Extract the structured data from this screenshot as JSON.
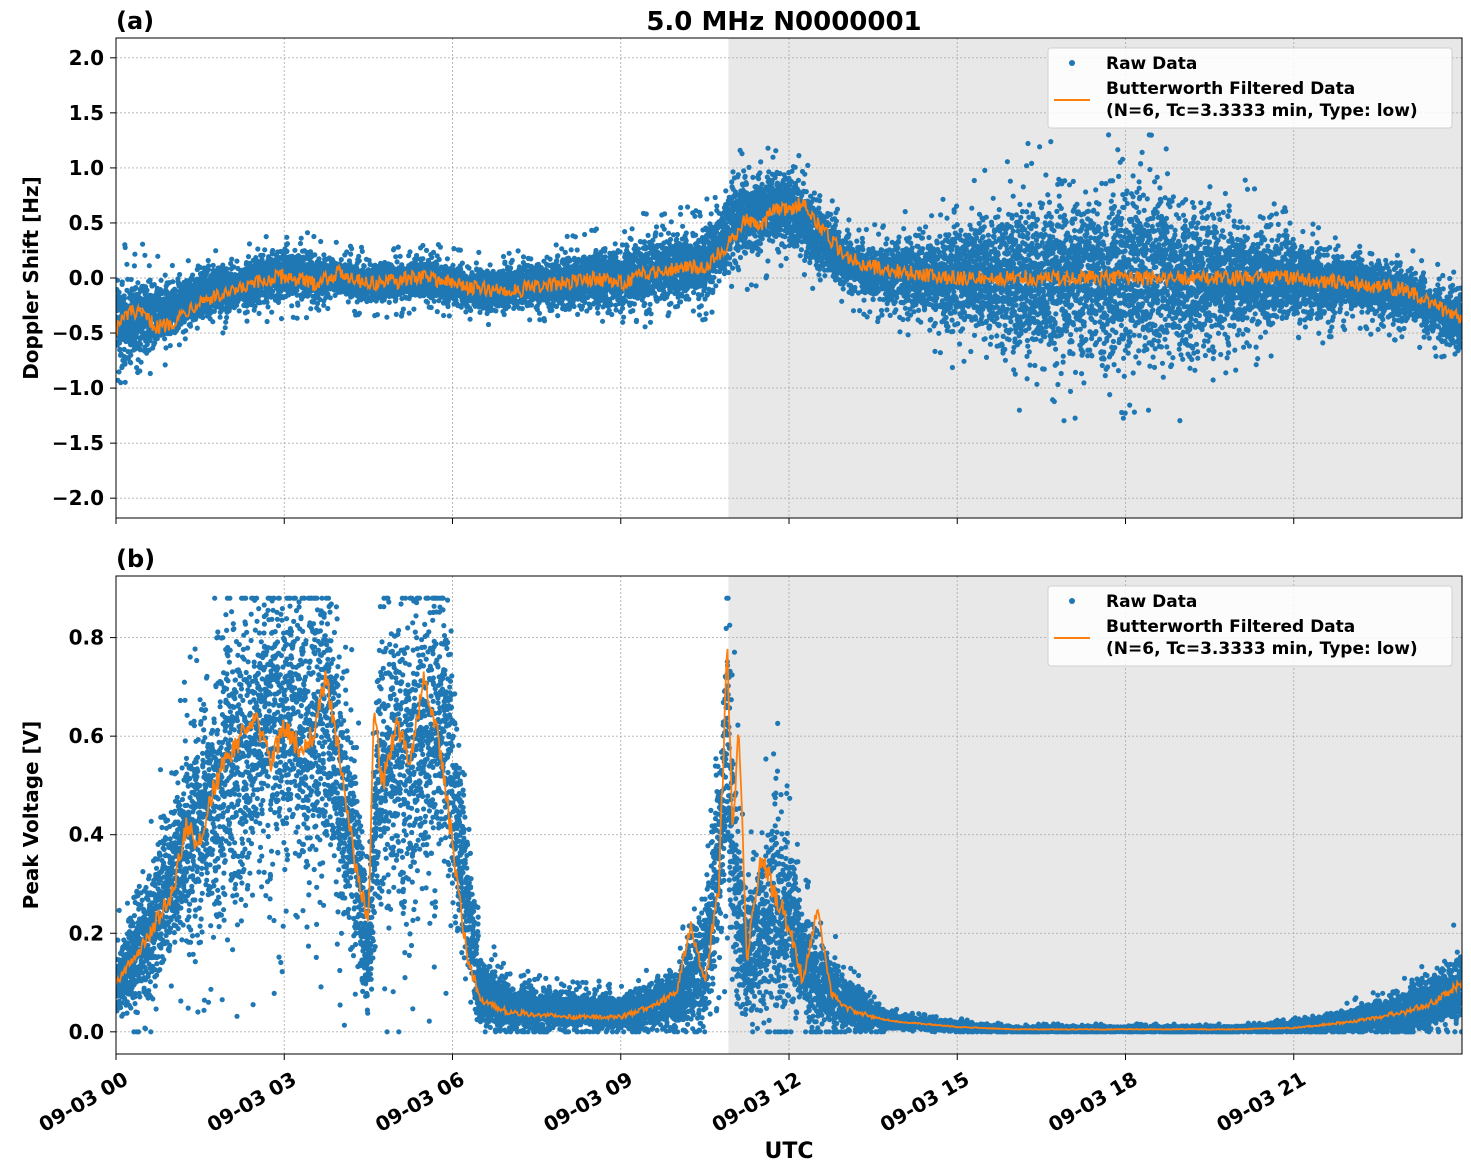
{
  "figure": {
    "title": "5.0 MHz N0000001",
    "xlabel": "UTC"
  },
  "colors": {
    "raw": "#1f77b4",
    "filtered": "#ff7f0e",
    "night_shade": "#e8e8e8",
    "grid": "#b0b0b0"
  },
  "legend": {
    "raw_label": "Raw Data",
    "filtered_label_line1": "Butterworth Filtered Data",
    "filtered_label_line2": "(N=6, Tc=3.3333 min, Type: low)"
  },
  "x_axis": {
    "range_hours": [
      0,
      24
    ],
    "ticks": [
      {
        "hour": 0,
        "label": "09-03 00"
      },
      {
        "hour": 3,
        "label": "09-03 03"
      },
      {
        "hour": 6,
        "label": "09-03 06"
      },
      {
        "hour": 9,
        "label": "09-03 09"
      },
      {
        "hour": 12,
        "label": "09-03 12"
      },
      {
        "hour": 15,
        "label": "09-03 15"
      },
      {
        "hour": 18,
        "label": "09-03 18"
      },
      {
        "hour": 21,
        "label": "09-03 21"
      }
    ]
  },
  "chart_data": [
    {
      "type": "scatter",
      "panel_label": "(a)",
      "ylabel": "Doppler Shift [Hz]",
      "ylim": [
        -2.18,
        2.18
      ],
      "yticks": [
        {
          "v": 2.0,
          "label": "2.0"
        },
        {
          "v": 1.5,
          "label": "1.5"
        },
        {
          "v": 1.0,
          "label": "1.0"
        },
        {
          "v": 0.5,
          "label": "0.5"
        },
        {
          "v": 0.0,
          "label": "0.0"
        },
        {
          "v": -0.5,
          "label": "−0.5"
        },
        {
          "v": -1.0,
          "label": "−1.0"
        },
        {
          "v": -1.5,
          "label": "−1.5"
        },
        {
          "v": -2.0,
          "label": "−2.0"
        }
      ],
      "night_shade_hours": [
        10.92,
        24
      ],
      "grid": true,
      "legend_position": "upper right",
      "series": [
        {
          "name": "Raw Data",
          "kind": "band-scatter",
          "x": [
            0,
            0.5,
            1,
            1.5,
            2,
            2.5,
            3,
            3.5,
            4,
            4.5,
            5,
            5.5,
            6,
            6.5,
            7,
            7.5,
            8,
            8.5,
            9,
            9.5,
            10,
            10.5,
            11,
            11.5,
            12,
            12.5,
            13,
            13.5,
            14,
            14.5,
            15,
            15.5,
            16,
            16.5,
            17,
            17.5,
            18,
            18.5,
            19,
            19.5,
            20,
            20.5,
            21,
            21.5,
            22,
            22.5,
            23,
            23.5,
            24
          ],
          "center": [
            -0.4,
            -0.35,
            -0.3,
            -0.15,
            -0.1,
            -0.05,
            0.05,
            0.0,
            0.0,
            -0.05,
            -0.02,
            0.0,
            -0.05,
            -0.1,
            -0.1,
            -0.05,
            -0.05,
            0.0,
            0.0,
            0.05,
            0.1,
            0.15,
            0.5,
            0.6,
            0.65,
            0.4,
            0.15,
            0.05,
            0.05,
            0.0,
            0.0,
            0.0,
            0.0,
            0.0,
            0.0,
            0.0,
            0.0,
            0.0,
            0.0,
            0.0,
            0.0,
            0.0,
            0.0,
            -0.05,
            -0.05,
            -0.1,
            -0.15,
            -0.3,
            -0.4
          ],
          "spread": [
            0.35,
            0.3,
            0.2,
            0.18,
            0.18,
            0.18,
            0.2,
            0.18,
            0.15,
            0.15,
            0.15,
            0.15,
            0.15,
            0.15,
            0.15,
            0.15,
            0.2,
            0.2,
            0.25,
            0.25,
            0.25,
            0.25,
            0.3,
            0.3,
            0.3,
            0.25,
            0.2,
            0.2,
            0.25,
            0.3,
            0.4,
            0.45,
            0.55,
            0.6,
            0.65,
            0.65,
            0.65,
            0.65,
            0.6,
            0.55,
            0.45,
            0.35,
            0.3,
            0.25,
            0.2,
            0.2,
            0.2,
            0.2,
            0.2
          ],
          "ymin": -2.0,
          "ymax": 1.3
        },
        {
          "name": "Butterworth Filtered Data\n(N=6, Tc=3.3333 min, Type: low)",
          "kind": "line",
          "x": [
            0,
            0.25,
            0.5,
            0.75,
            1,
            1.5,
            2,
            2.5,
            3,
            3.5,
            4,
            4.5,
            5,
            5.5,
            6,
            6.5,
            7,
            7.5,
            8,
            8.5,
            9,
            9.5,
            10,
            10.5,
            11,
            11.25,
            11.5,
            11.75,
            12,
            12.25,
            12.5,
            12.75,
            13,
            13.5,
            14,
            15,
            16,
            17,
            18,
            19,
            20,
            21,
            22,
            23,
            23.5,
            24
          ],
          "y": [
            -0.45,
            -0.3,
            -0.35,
            -0.45,
            -0.4,
            -0.2,
            -0.15,
            -0.05,
            0.02,
            -0.05,
            0.05,
            -0.05,
            -0.03,
            0.02,
            -0.05,
            -0.1,
            -0.12,
            -0.08,
            -0.05,
            0.0,
            -0.05,
            0.05,
            0.1,
            0.1,
            0.35,
            0.55,
            0.45,
            0.65,
            0.6,
            0.7,
            0.5,
            0.35,
            0.2,
            0.1,
            0.05,
            0.0,
            0.0,
            0.0,
            0.0,
            0.0,
            0.0,
            0.0,
            -0.05,
            -0.1,
            -0.25,
            -0.35
          ]
        }
      ]
    },
    {
      "type": "scatter",
      "panel_label": "(b)",
      "ylabel": "Peak Voltage [V]",
      "ylim": [
        -0.045,
        0.925
      ],
      "yticks": [
        {
          "v": 0.0,
          "label": "0.0"
        },
        {
          "v": 0.2,
          "label": "0.2"
        },
        {
          "v": 0.4,
          "label": "0.4"
        },
        {
          "v": 0.6,
          "label": "0.6"
        },
        {
          "v": 0.8,
          "label": "0.8"
        }
      ],
      "night_shade_hours": [
        10.92,
        24
      ],
      "grid": true,
      "legend_position": "upper right",
      "series": [
        {
          "name": "Raw Data",
          "kind": "band-scatter",
          "x": [
            0,
            0.5,
            1,
            1.5,
            2,
            2.5,
            3,
            3.5,
            3.8,
            4.2,
            4.5,
            4.7,
            5,
            5.5,
            5.9,
            6.2,
            6.5,
            7,
            8,
            9,
            9.5,
            10,
            10.5,
            10.75,
            10.9,
            11.05,
            11.2,
            11.5,
            11.75,
            12,
            12.25,
            12.5,
            13,
            13.5,
            14,
            15,
            16,
            18,
            20,
            21,
            22,
            23,
            23.5,
            24
          ],
          "center": [
            0.1,
            0.18,
            0.32,
            0.45,
            0.52,
            0.6,
            0.62,
            0.6,
            0.62,
            0.4,
            0.15,
            0.55,
            0.52,
            0.58,
            0.62,
            0.32,
            0.08,
            0.05,
            0.04,
            0.04,
            0.05,
            0.07,
            0.15,
            0.35,
            0.6,
            0.3,
            0.15,
            0.2,
            0.25,
            0.22,
            0.15,
            0.1,
            0.06,
            0.03,
            0.02,
            0.01,
            0.005,
            0.005,
            0.005,
            0.01,
            0.02,
            0.04,
            0.06,
            0.09
          ],
          "spread": [
            0.06,
            0.1,
            0.14,
            0.2,
            0.25,
            0.25,
            0.25,
            0.25,
            0.25,
            0.2,
            0.1,
            0.25,
            0.3,
            0.28,
            0.25,
            0.15,
            0.06,
            0.04,
            0.03,
            0.03,
            0.04,
            0.05,
            0.12,
            0.18,
            0.25,
            0.2,
            0.1,
            0.15,
            0.18,
            0.15,
            0.1,
            0.07,
            0.05,
            0.02,
            0.01,
            0.008,
            0.005,
            0.005,
            0.005,
            0.008,
            0.02,
            0.04,
            0.05,
            0.07
          ],
          "ymin": 0.0,
          "ymax": 0.88
        },
        {
          "name": "Butterworth Filtered Data\n(N=6, Tc=3.3333 min, Type: low)",
          "kind": "line",
          "x": [
            0,
            0.5,
            1,
            1.25,
            1.5,
            1.75,
            2,
            2.25,
            2.5,
            2.75,
            3,
            3.25,
            3.5,
            3.75,
            4,
            4.25,
            4.5,
            4.6,
            4.75,
            5,
            5.25,
            5.5,
            5.75,
            6,
            6.25,
            6.5,
            7,
            8,
            9,
            9.5,
            10,
            10.25,
            10.5,
            10.75,
            10.9,
            11,
            11.1,
            11.25,
            11.5,
            11.75,
            12,
            12.25,
            12.5,
            12.75,
            13,
            13.5,
            14,
            15,
            16,
            18,
            20,
            21,
            22,
            23,
            23.5,
            24
          ],
          "y": [
            0.1,
            0.18,
            0.28,
            0.42,
            0.38,
            0.5,
            0.56,
            0.6,
            0.63,
            0.55,
            0.62,
            0.58,
            0.6,
            0.72,
            0.55,
            0.35,
            0.22,
            0.65,
            0.5,
            0.62,
            0.55,
            0.72,
            0.6,
            0.38,
            0.16,
            0.06,
            0.04,
            0.03,
            0.03,
            0.05,
            0.08,
            0.22,
            0.1,
            0.3,
            0.78,
            0.4,
            0.62,
            0.15,
            0.35,
            0.28,
            0.22,
            0.1,
            0.25,
            0.08,
            0.05,
            0.03,
            0.02,
            0.01,
            0.005,
            0.005,
            0.005,
            0.008,
            0.02,
            0.04,
            0.06,
            0.1
          ]
        }
      ]
    }
  ]
}
